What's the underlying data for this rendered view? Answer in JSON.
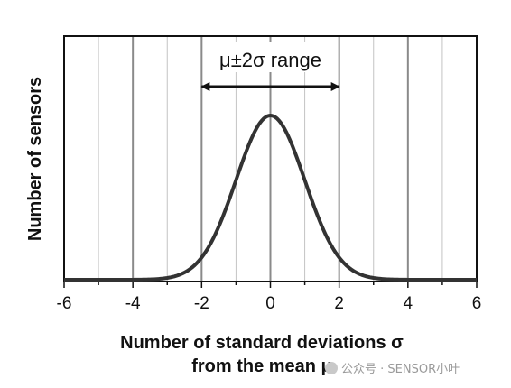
{
  "chart_data": {
    "type": "line",
    "ylabel": "Number of sensors",
    "xlabel_lines": [
      "Number of standard deviations σ",
      "from the mean μ"
    ],
    "xlim": [
      -6,
      6
    ],
    "x_ticks": [
      -6,
      -4,
      -2,
      0,
      2,
      4,
      6
    ],
    "x_tick_labels": [
      "-6",
      "-4",
      "-2",
      "0",
      "2",
      "4",
      "6"
    ],
    "x_gridlines_major": [
      -4,
      -2,
      0,
      2,
      4
    ],
    "x_gridlines_minor": [
      -5,
      -3,
      -1,
      1,
      3,
      5
    ],
    "y_ticks_shown": false,
    "grid": "vertical",
    "series": [
      {
        "distribution": "normal",
        "mean": 0,
        "std": 1,
        "color": "#333333"
      }
    ],
    "annotations": [
      {
        "text": "μ±2σ range",
        "arrow_from": -2,
        "arrow_to": 2,
        "style": "double-arrow"
      }
    ]
  },
  "watermark": {
    "text": "公众号 · SENSOR小叶",
    "icon": "wechat-icon"
  }
}
